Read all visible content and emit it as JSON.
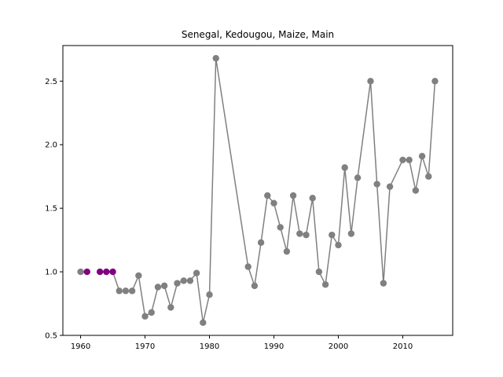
{
  "chart_data": {
    "type": "line",
    "title": "Senegal, Kedougou, Maize, Main",
    "xlabel": "",
    "ylabel": "",
    "xlim": [
      1957.25,
      2017.75
    ],
    "ylim": [
      0.5,
      2.78
    ],
    "x_ticks": [
      1960,
      1970,
      1980,
      1990,
      2000,
      2010
    ],
    "y_ticks": [
      0.5,
      1.0,
      1.5,
      2.0,
      2.5
    ],
    "x_tick_labels": [
      "1960",
      "1970",
      "1980",
      "1990",
      "2000",
      "2010"
    ],
    "y_tick_labels": [
      "0.5",
      "1.0",
      "1.5",
      "2.0",
      "2.5"
    ],
    "grid": false,
    "line_color": "#808080",
    "marker_color": "#808080",
    "highlight_color": "#800080",
    "series": [
      {
        "x": [
          1960,
          1961,
          1962,
          1963,
          1964,
          1965,
          1966,
          1967,
          1968,
          1969,
          1970,
          1971,
          1972,
          1973,
          1974,
          1975,
          1976,
          1977,
          1978,
          1979,
          1980,
          1981,
          1986,
          1987,
          1988,
          1989,
          1990,
          1991,
          1992,
          1993,
          1994,
          1995,
          1996,
          1997,
          1998,
          1999,
          2000,
          2001,
          2002,
          2003,
          2005,
          2006,
          2007,
          2008,
          2010,
          2011,
          2012,
          2013,
          2014,
          2015
        ],
        "y": [
          1.0,
          1.0,
          null,
          1.0,
          1.0,
          1.0,
          0.85,
          0.85,
          0.85,
          0.97,
          0.65,
          0.68,
          0.88,
          0.89,
          0.72,
          0.91,
          0.93,
          0.93,
          0.99,
          0.6,
          0.82,
          2.68,
          1.04,
          0.89,
          1.23,
          1.6,
          1.54,
          1.35,
          1.16,
          1.6,
          1.3,
          1.29,
          1.58,
          1.0,
          0.9,
          1.29,
          1.21,
          1.82,
          1.3,
          1.74,
          2.5,
          1.69,
          0.91,
          1.67,
          1.88,
          1.88,
          1.64,
          1.91,
          1.75,
          2.5
        ],
        "highlight_x": [
          1961,
          1963,
          1964,
          1965
        ]
      }
    ]
  }
}
